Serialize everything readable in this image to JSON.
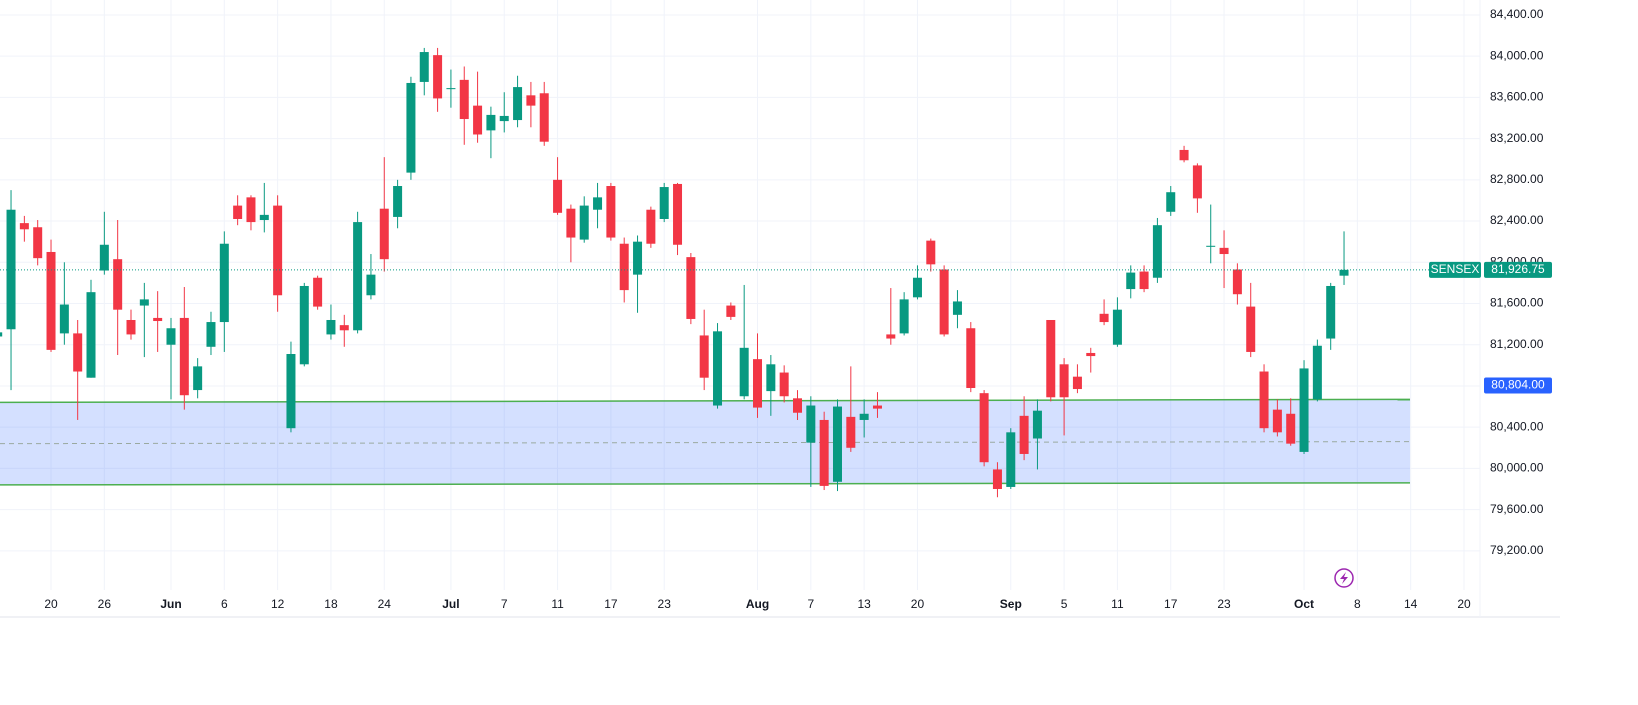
{
  "chart_data": {
    "type": "candlestick",
    "name": "SENSEX",
    "up_color": "#089981",
    "down_color": "#f23645",
    "grid": true,
    "categories": [
      null,
      null,
      null,
      null,
      "20",
      null,
      null,
      null,
      "26",
      null,
      null,
      null,
      null,
      "Jun",
      null,
      null,
      null,
      "6",
      null,
      null,
      null,
      "12",
      null,
      null,
      null,
      "18",
      null,
      null,
      null,
      "24",
      null,
      null,
      null,
      null,
      "Jul",
      null,
      null,
      null,
      "7",
      null,
      null,
      null,
      "11",
      null,
      null,
      null,
      "17",
      null,
      null,
      null,
      "23",
      null,
      null,
      null,
      null,
      null,
      null,
      "Aug",
      null,
      null,
      null,
      "7",
      null,
      null,
      null,
      "13",
      null,
      null,
      null,
      "20",
      null,
      null,
      null,
      null,
      null,
      null,
      "Sep",
      null,
      null,
      null,
      "5",
      null,
      null,
      null,
      "11",
      null,
      null,
      null,
      "17",
      null,
      null,
      null,
      "23",
      null,
      null,
      null,
      null,
      null,
      "Oct",
      null,
      null,
      null,
      "8",
      null,
      null,
      null,
      "14",
      null,
      null,
      null,
      "20"
    ],
    "open": [
      81280,
      81350,
      82380,
      82340,
      82100,
      81310,
      81310,
      80880,
      81920,
      82030,
      81440,
      81580,
      81460,
      81200,
      81460,
      80760,
      81180,
      81420,
      82550,
      82630,
      82410,
      82550,
      80390,
      81010,
      81850,
      81300,
      81390,
      81340,
      81680,
      82520,
      82440,
      82870,
      83750,
      84010,
      83680,
      83770,
      83520,
      83280,
      83370,
      83380,
      83620,
      83640,
      82800,
      82520,
      82220,
      82510,
      82740,
      82180,
      81880,
      82510,
      82420,
      82760,
      82050,
      81290,
      80610,
      81580,
      80700,
      81060,
      80750,
      80930,
      80680,
      80250,
      80470,
      79870,
      80500,
      80470,
      80610,
      81300,
      81310,
      81660,
      82210,
      81930,
      81490,
      81360,
      80730,
      79990,
      79820,
      80510,
      80290,
      81440,
      81010,
      80890,
      81120,
      81500,
      81200,
      81740,
      81910,
      81850,
      82490,
      83090,
      82940,
      82150,
      82140,
      81930,
      81570,
      80940,
      80570,
      80530,
      80160,
      80670,
      81260,
      81870,
      null,
      null,
      null,
      null,
      null,
      null,
      null,
      null,
      null
    ],
    "high": [
      81350,
      82700,
      82450,
      82410,
      82220,
      82000,
      81440,
      81830,
      82490,
      82410,
      81540,
      81800,
      81720,
      81460,
      81760,
      81070,
      81520,
      82300,
      82650,
      82650,
      82770,
      82650,
      81230,
      81800,
      81870,
      81590,
      81490,
      82490,
      82080,
      83020,
      82800,
      83800,
      84080,
      84080,
      83870,
      83900,
      83850,
      83510,
      83650,
      83810,
      83750,
      83750,
      83020,
      82560,
      82640,
      82770,
      82770,
      82240,
      82260,
      82540,
      82770,
      82770,
      82090,
      81540,
      81410,
      81610,
      81780,
      81310,
      81100,
      81000,
      80760,
      80700,
      80550,
      80670,
      80990,
      80670,
      80740,
      81750,
      81710,
      81970,
      82230,
      81970,
      81730,
      81420,
      80760,
      80060,
      80390,
      80700,
      80670,
      81440,
      81070,
      81010,
      81170,
      81640,
      81660,
      81970,
      81970,
      82430,
      82740,
      83130,
      82960,
      82560,
      82310,
      81990,
      81800,
      81010,
      80670,
      80680,
      81050,
      81250,
      81800,
      82300,
      null,
      null,
      null,
      null,
      null,
      null,
      null,
      null,
      null
    ],
    "low": [
      81250,
      80760,
      82200,
      81970,
      81130,
      81200,
      80470,
      80880,
      81880,
      81100,
      81250,
      81080,
      81130,
      80670,
      80570,
      80680,
      81100,
      81130,
      82360,
      82310,
      82290,
      81520,
      80350,
      80990,
      81540,
      81250,
      81180,
      81310,
      81640,
      81910,
      82330,
      82800,
      83620,
      83460,
      83500,
      83140,
      83160,
      83010,
      83260,
      83310,
      83310,
      83130,
      82460,
      82000,
      82190,
      82330,
      82210,
      81610,
      81510,
      82140,
      82390,
      82070,
      81400,
      80760,
      80580,
      81440,
      80670,
      80490,
      80510,
      80640,
      80470,
      79820,
      79790,
      79780,
      80160,
      80300,
      80490,
      81200,
      81290,
      81640,
      81910,
      81280,
      81360,
      80740,
      80020,
      79720,
      79800,
      80080,
      79990,
      80650,
      80320,
      80730,
      80930,
      81390,
      81180,
      81650,
      81710,
      81800,
      82450,
      82970,
      82480,
      81990,
      81750,
      81590,
      81080,
      80350,
      80310,
      80220,
      80140,
      80650,
      81150,
      81780,
      null,
      null,
      null,
      null,
      null,
      null,
      null,
      null,
      null
    ],
    "close": [
      81320,
      82510,
      82320,
      82040,
      81150,
      81590,
      80940,
      81710,
      82170,
      81540,
      81300,
      81640,
      81430,
      81360,
      80710,
      80990,
      81420,
      82180,
      82420,
      82390,
      82460,
      81680,
      81110,
      81770,
      81570,
      81440,
      81340,
      82390,
      81880,
      82030,
      82740,
      83740,
      84040,
      83590,
      83690,
      83390,
      83240,
      83430,
      83420,
      83700,
      83520,
      83170,
      82480,
      82240,
      82550,
      82630,
      82240,
      81730,
      82200,
      82180,
      82730,
      82170,
      81450,
      80880,
      81330,
      81470,
      81170,
      80590,
      81010,
      80700,
      80540,
      80610,
      79830,
      80600,
      80200,
      80530,
      80580,
      81260,
      81640,
      81850,
      81980,
      81300,
      81620,
      80780,
      80060,
      79800,
      80350,
      80140,
      80560,
      80690,
      80690,
      80770,
      81090,
      81420,
      81540,
      81900,
      81740,
      82360,
      82680,
      82990,
      82620,
      82160,
      82080,
      81690,
      81130,
      80390,
      80350,
      80240,
      80970,
      81190,
      81770,
      81926.75,
      null,
      null,
      null,
      null,
      null,
      null,
      null,
      null,
      null
    ],
    "ylim": [
      78820,
      84545
    ],
    "yticks": [
      {
        "value": 84400,
        "label": "84,400.00"
      },
      {
        "value": 84000,
        "label": "84,000.00"
      },
      {
        "value": 83600,
        "label": "83,600.00"
      },
      {
        "value": 83200,
        "label": "83,200.00"
      },
      {
        "value": 82800,
        "label": "82,800.00"
      },
      {
        "value": 82400,
        "label": "82,400.00"
      },
      {
        "value": 82000,
        "label": "82,000.00"
      },
      {
        "value": 81600,
        "label": "81,600.00"
      },
      {
        "value": 81200,
        "label": "81,200.00"
      },
      {
        "value": 80800,
        "label": "80,800.00"
      },
      {
        "value": 80400,
        "label": "80,400.00"
      },
      {
        "value": 80000,
        "label": "80,000.00"
      },
      {
        "value": 79600,
        "label": "79,600.00"
      },
      {
        "value": 79200,
        "label": "79,200.00"
      }
    ],
    "last_price": {
      "value": 81926.75,
      "label": "81,926.75"
    },
    "marker_price": {
      "value": 80804,
      "label": "80,804.00"
    },
    "zone": {
      "top": [
        80640,
        80670
      ],
      "mid": [
        80240,
        80260
      ],
      "bottom": [
        79840,
        79860
      ]
    }
  }
}
